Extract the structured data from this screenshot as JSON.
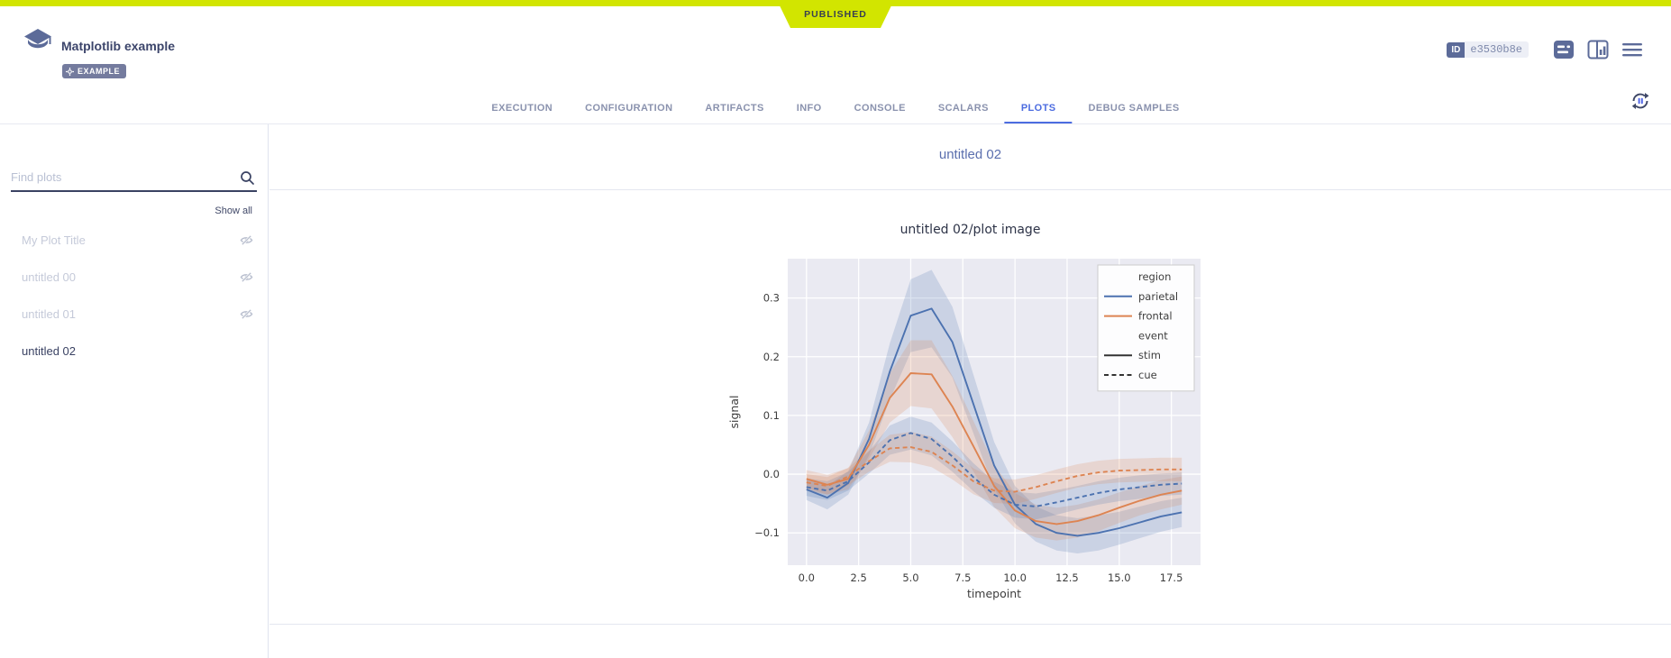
{
  "published_banner": {
    "label": "PUBLISHED",
    "color": "#d2e500"
  },
  "header": {
    "title": "Matplotlib example",
    "tag": "EXAMPLE",
    "id_label": "ID",
    "id_value": "e3530b8e"
  },
  "tabs": {
    "items": [
      "EXECUTION",
      "CONFIGURATION",
      "ARTIFACTS",
      "INFO",
      "CONSOLE",
      "SCALARS",
      "PLOTS",
      "DEBUG SAMPLES"
    ],
    "active": "PLOTS"
  },
  "sidebar": {
    "search_placeholder": "Find plots",
    "show_all_label": "Show all",
    "items": [
      {
        "label": "My Plot Title",
        "hidden": true,
        "selected": false
      },
      {
        "label": "untitled 00",
        "hidden": true,
        "selected": false
      },
      {
        "label": "untitled 01",
        "hidden": true,
        "selected": false
      },
      {
        "label": "untitled 02",
        "hidden": false,
        "selected": true
      }
    ]
  },
  "main": {
    "section_title": "untitled 02",
    "plot_title": "untitled 02/plot image"
  },
  "icons": {
    "logo": "project-logo-icon",
    "tag_gear": "gear-icon",
    "details": "details-panel-icon",
    "compare": "compare-panels-icon",
    "menu": "hamburger-menu-icon",
    "autorefresh": "auto-refresh-pause-icon",
    "search": "search-icon",
    "hidden_plot": "eye-off-icon"
  },
  "colors": {
    "accent_yellow": "#d2e500",
    "active_tab_blue": "#4c6ce0",
    "slate": "#5c6b99",
    "series_blue": "#4c72b0",
    "series_orange": "#dd8452",
    "plot_bg": "#eaeaf2"
  },
  "chart_data": {
    "type": "line",
    "title": "untitled 02/plot image",
    "xlabel": "timepoint",
    "ylabel": "signal",
    "background": "#eaeaf2",
    "grid": true,
    "xlim": [
      -0.9,
      18.9
    ],
    "ylim": [
      -0.155,
      0.367
    ],
    "xticks": [
      0.0,
      2.5,
      5.0,
      7.5,
      10.0,
      12.5,
      15.0,
      17.5
    ],
    "yticks": [
      -0.1,
      0.0,
      0.1,
      0.2,
      0.3
    ],
    "x": [
      0,
      1,
      2,
      3,
      4,
      5,
      6,
      7,
      8,
      9,
      10,
      11,
      12,
      13,
      14,
      15,
      16,
      17,
      18
    ],
    "series": [
      {
        "name": "parietal-stim",
        "region": "parietal",
        "event": "stim",
        "color": "#4c72b0",
        "dash": null,
        "values": [
          -0.026,
          -0.04,
          -0.015,
          0.06,
          0.175,
          0.27,
          0.282,
          0.225,
          0.12,
          0.015,
          -0.052,
          -0.085,
          -0.1,
          -0.105,
          -0.1,
          -0.092,
          -0.082,
          -0.072,
          -0.065
        ],
        "band": [
          0.018,
          0.02,
          0.02,
          0.028,
          0.048,
          0.062,
          0.066,
          0.06,
          0.05,
          0.04,
          0.032,
          0.03,
          0.03,
          0.03,
          0.03,
          0.028,
          0.027,
          0.026,
          0.025
        ]
      },
      {
        "name": "frontal-stim",
        "region": "frontal",
        "event": "stim",
        "color": "#dd8452",
        "dash": null,
        "values": [
          -0.008,
          -0.018,
          -0.008,
          0.05,
          0.13,
          0.172,
          0.17,
          0.115,
          0.048,
          -0.02,
          -0.062,
          -0.08,
          -0.085,
          -0.08,
          -0.07,
          -0.057,
          -0.045,
          -0.035,
          -0.028
        ],
        "band": [
          0.015,
          0.017,
          0.018,
          0.024,
          0.042,
          0.056,
          0.058,
          0.052,
          0.043,
          0.036,
          0.03,
          0.028,
          0.028,
          0.028,
          0.027,
          0.026,
          0.025,
          0.025,
          0.024
        ]
      },
      {
        "name": "parietal-cue",
        "region": "parietal",
        "event": "cue",
        "color": "#4c72b0",
        "dash": "5,3.5",
        "values": [
          -0.022,
          -0.028,
          -0.012,
          0.02,
          0.058,
          0.07,
          0.06,
          0.03,
          -0.005,
          -0.035,
          -0.052,
          -0.055,
          -0.048,
          -0.04,
          -0.032,
          -0.026,
          -0.022,
          -0.018,
          -0.016
        ],
        "band": [
          0.015,
          0.016,
          0.016,
          0.019,
          0.025,
          0.028,
          0.028,
          0.026,
          0.024,
          0.022,
          0.022,
          0.022,
          0.021,
          0.02,
          0.02,
          0.02,
          0.02,
          0.019,
          0.019
        ]
      },
      {
        "name": "frontal-cue",
        "region": "frontal",
        "event": "cue",
        "color": "#dd8452",
        "dash": "5,3.5",
        "values": [
          -0.014,
          -0.02,
          -0.004,
          0.022,
          0.044,
          0.046,
          0.038,
          0.015,
          -0.012,
          -0.028,
          -0.03,
          -0.022,
          -0.012,
          -0.003,
          0.003,
          0.006,
          0.007,
          0.008,
          0.008
        ],
        "band": [
          0.014,
          0.015,
          0.015,
          0.018,
          0.023,
          0.026,
          0.026,
          0.024,
          0.022,
          0.021,
          0.021,
          0.02,
          0.02,
          0.02,
          0.02,
          0.02,
          0.02,
          0.02,
          0.02
        ]
      }
    ],
    "legend": {
      "position": "upper right",
      "entries": [
        {
          "label": "region",
          "type": "title"
        },
        {
          "label": "parietal",
          "type": "line",
          "color": "#4c72b0",
          "dash": null
        },
        {
          "label": "frontal",
          "type": "line",
          "color": "#dd8452",
          "dash": null
        },
        {
          "label": "event",
          "type": "title"
        },
        {
          "label": "stim",
          "type": "line",
          "color": "#333333",
          "dash": null
        },
        {
          "label": "cue",
          "type": "line",
          "color": "#333333",
          "dash": "5,3.5"
        }
      ]
    }
  }
}
